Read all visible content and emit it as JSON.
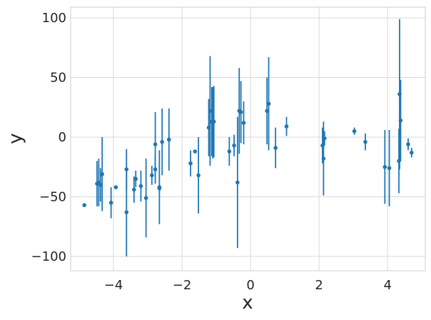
{
  "chart_data": {
    "type": "scatter",
    "xlabel": "x",
    "ylabel": "y",
    "xlim": [
      -5.25,
      5.1
    ],
    "ylim": [
      -112,
      109
    ],
    "xticks": [
      -4,
      -2,
      0,
      2,
      4
    ],
    "yticks": [
      -100,
      -50,
      0,
      50,
      100
    ],
    "xtick_labels": [
      "−4",
      "−2",
      "0",
      "2",
      "4"
    ],
    "ytick_labels": [
      "−100",
      "−50",
      "0",
      "50",
      "100"
    ],
    "grid": true,
    "series": [
      {
        "color": "#1f77b4",
        "points": [
          {
            "x": -4.85,
            "y": -57,
            "err": 1
          },
          {
            "x": -4.48,
            "y": -39,
            "err": 19
          },
          {
            "x": -4.43,
            "y": -38,
            "err": 20
          },
          {
            "x": -4.38,
            "y": -40,
            "err": 14
          },
          {
            "x": -4.33,
            "y": -31,
            "err": 31
          },
          {
            "x": -4.07,
            "y": -55,
            "err": 13
          },
          {
            "x": -3.93,
            "y": -42,
            "err": 1
          },
          {
            "x": -3.62,
            "y": -63,
            "err": 37
          },
          {
            "x": -3.62,
            "y": -27,
            "err": 17
          },
          {
            "x": -3.4,
            "y": -44,
            "err": 11
          },
          {
            "x": -3.35,
            "y": -35,
            "err": 7
          },
          {
            "x": -3.2,
            "y": -41,
            "err": 13
          },
          {
            "x": -3.05,
            "y": -51,
            "err": 33
          },
          {
            "x": -2.88,
            "y": -32,
            "err": 8
          },
          {
            "x": -2.78,
            "y": -6,
            "err": 27
          },
          {
            "x": -2.78,
            "y": -27,
            "err": 12
          },
          {
            "x": -2.66,
            "y": -42,
            "err": 31
          },
          {
            "x": -2.66,
            "y": -43,
            "err": 3
          },
          {
            "x": -2.58,
            "y": -4,
            "err": 28
          },
          {
            "x": -2.38,
            "y": -2,
            "err": 26
          },
          {
            "x": -1.75,
            "y": -22,
            "err": 11
          },
          {
            "x": -1.62,
            "y": -12,
            "err": 1
          },
          {
            "x": -1.52,
            "y": -32,
            "err": 32
          },
          {
            "x": -1.22,
            "y": 8,
            "err": 24
          },
          {
            "x": -1.18,
            "y": 22,
            "err": 46
          },
          {
            "x": -1.13,
            "y": 13,
            "err": 29
          },
          {
            "x": -1.1,
            "y": 12,
            "err": 30
          },
          {
            "x": -1.07,
            "y": 13,
            "err": 30
          },
          {
            "x": -0.62,
            "y": -12,
            "err": 12
          },
          {
            "x": -0.48,
            "y": -7,
            "err": 9
          },
          {
            "x": -0.38,
            "y": -38,
            "err": 55
          },
          {
            "x": -0.33,
            "y": 22,
            "err": 36
          },
          {
            "x": -0.28,
            "y": 21,
            "err": 26
          },
          {
            "x": -0.2,
            "y": 12,
            "err": 18
          },
          {
            "x": 0.48,
            "y": 22,
            "err": 28
          },
          {
            "x": 0.53,
            "y": 28,
            "err": 39
          },
          {
            "x": 0.73,
            "y": -9,
            "err": 17
          },
          {
            "x": 1.05,
            "y": 9,
            "err": 8
          },
          {
            "x": 2.1,
            "y": -7,
            "err": 15
          },
          {
            "x": 2.13,
            "y": -18,
            "err": 31
          },
          {
            "x": 2.16,
            "y": -1,
            "err": 6
          },
          {
            "x": 3.03,
            "y": 5,
            "err": 3
          },
          {
            "x": 3.35,
            "y": -4,
            "err": 7
          },
          {
            "x": 3.92,
            "y": -25,
            "err": 31
          },
          {
            "x": 4.05,
            "y": -26,
            "err": 32
          },
          {
            "x": 4.33,
            "y": -20,
            "err": 27
          },
          {
            "x": 4.35,
            "y": 36,
            "err": 63
          },
          {
            "x": 4.38,
            "y": 14,
            "err": 34
          },
          {
            "x": 4.6,
            "y": -6,
            "err": 5
          },
          {
            "x": 4.7,
            "y": -13,
            "err": 4
          }
        ]
      }
    ]
  }
}
